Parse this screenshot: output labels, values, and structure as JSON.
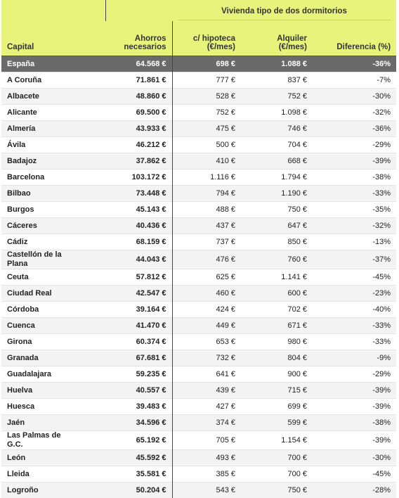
{
  "table": {
    "group_header": "Vivienda tipo de dos dormitorios",
    "columns": [
      "Capital",
      "Ahorros necesarios",
      "c/ hipoteca (€/mes)",
      "Alquiler (€/mes)",
      "Diferencia (%)"
    ],
    "rows": [
      [
        "España",
        "64.568 €",
        "698 €",
        "1.088 €",
        "-36%"
      ],
      [
        "A Coruña",
        "71.861 €",
        "777 €",
        "837 €",
        "-7%"
      ],
      [
        "Albacete",
        "48.860 €",
        "528 €",
        "752 €",
        "-30%"
      ],
      [
        "Alicante",
        "69.500 €",
        "752 €",
        "1.098 €",
        "-32%"
      ],
      [
        "Almería",
        "43.933 €",
        "475 €",
        "746 €",
        "-36%"
      ],
      [
        "Ávila",
        "46.212 €",
        "500 €",
        "704 €",
        "-29%"
      ],
      [
        "Badajoz",
        "37.862 €",
        "410 €",
        "668 €",
        "-39%"
      ],
      [
        "Barcelona",
        "103.172 €",
        "1.116 €",
        "1.794 €",
        "-38%"
      ],
      [
        "Bilbao",
        "73.448 €",
        "794 €",
        "1.190 €",
        "-33%"
      ],
      [
        "Burgos",
        "45.143 €",
        "488 €",
        "750 €",
        "-35%"
      ],
      [
        "Cáceres",
        "40.436 €",
        "437 €",
        "647 €",
        "-32%"
      ],
      [
        "Cádiz",
        "68.159 €",
        "737 €",
        "850 €",
        "-13%"
      ],
      [
        "Castellón de la Plana",
        "44.043 €",
        "476 €",
        "760 €",
        "-37%"
      ],
      [
        "Ceuta",
        "57.812 €",
        "625 €",
        "1.141 €",
        "-45%"
      ],
      [
        "Ciudad Real",
        "42.547 €",
        "460 €",
        "600 €",
        "-23%"
      ],
      [
        "Córdoba",
        "39.164 €",
        "424 €",
        "702 €",
        "-40%"
      ],
      [
        "Cuenca",
        "41.470 €",
        "449 €",
        "671 €",
        "-33%"
      ],
      [
        "Girona",
        "60.374 €",
        "653 €",
        "980 €",
        "-33%"
      ],
      [
        "Granada",
        "67.681 €",
        "732 €",
        "804 €",
        "-9%"
      ],
      [
        "Guadalajara",
        "59.235 €",
        "641 €",
        "900 €",
        "-29%"
      ],
      [
        "Huelva",
        "40.557 €",
        "439 €",
        "715 €",
        "-39%"
      ],
      [
        "Huesca",
        "39.483 €",
        "427 €",
        "699 €",
        "-39%"
      ],
      [
        "Jaén",
        "34.596 €",
        "374 €",
        "599 €",
        "-38%"
      ],
      [
        "Las Palmas de G.C.",
        "65.192 €",
        "705 €",
        "1.154 €",
        "-39%"
      ],
      [
        "León",
        "45.592 €",
        "493 €",
        "700 €",
        "-30%"
      ],
      [
        "Lleida",
        "35.581 €",
        "385 €",
        "700 €",
        "-45%"
      ],
      [
        "Logroño",
        "50.204 €",
        "543 €",
        "750 €",
        "-28%"
      ]
    ]
  }
}
